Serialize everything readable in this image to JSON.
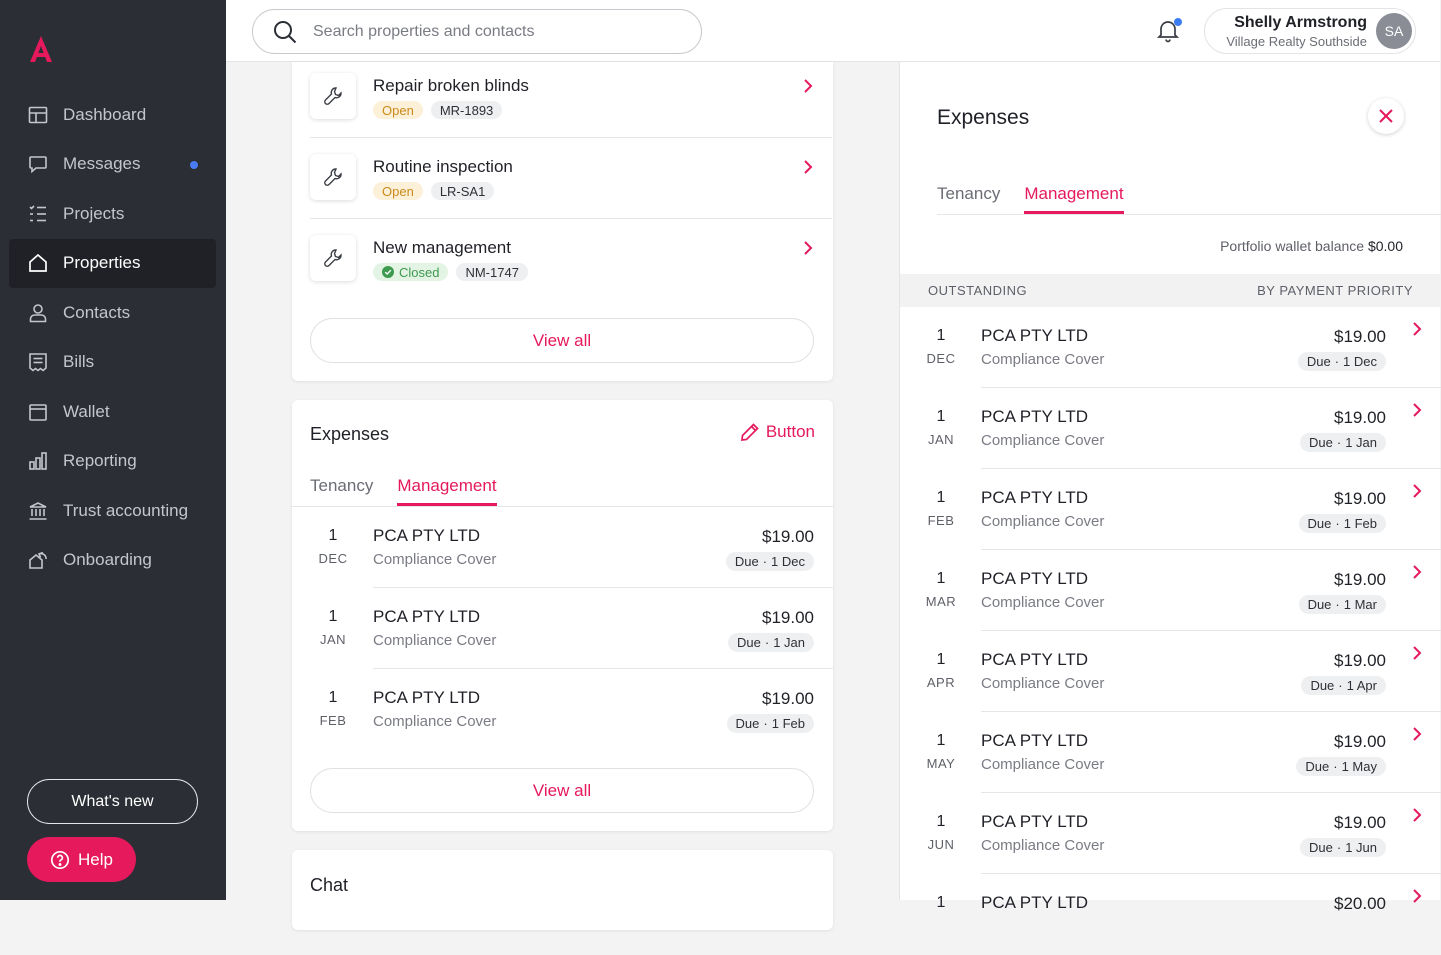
{
  "brand": {
    "accent": "#e5195b",
    "sidebar_bg": "#2b2e35"
  },
  "sidebar": {
    "items": [
      {
        "label": "Dashboard",
        "icon": "dashboard-icon",
        "active": false
      },
      {
        "label": "Messages",
        "icon": "message-icon",
        "active": false,
        "unread_dot": true
      },
      {
        "label": "Projects",
        "icon": "list-icon",
        "active": false
      },
      {
        "label": "Properties",
        "icon": "home-icon",
        "active": true
      },
      {
        "label": "Contacts",
        "icon": "person-icon",
        "active": false
      },
      {
        "label": "Bills",
        "icon": "bill-icon",
        "active": false
      },
      {
        "label": "Wallet",
        "icon": "wallet-icon",
        "active": false
      },
      {
        "label": "Reporting",
        "icon": "bar-chart-icon",
        "active": false
      },
      {
        "label": "Trust accounting",
        "icon": "bank-icon",
        "active": false
      },
      {
        "label": "Onboarding",
        "icon": "onboarding-icon",
        "active": false
      }
    ],
    "whats_new": "What's new",
    "help": "Help"
  },
  "topbar": {
    "search_placeholder": "Search properties and contacts",
    "user_name": "Shelly Armstrong",
    "user_org": "Village Realty Southside",
    "user_initials": "SA"
  },
  "tasks": {
    "items": [
      {
        "title": "Repair broken blinds",
        "status": "Open",
        "ref": "MR-1893"
      },
      {
        "title": "Routine inspection",
        "status": "Open",
        "ref": "LR-SA1"
      },
      {
        "title": "New management",
        "status": "Closed",
        "ref": "NM-1747"
      }
    ],
    "view_all": "View all"
  },
  "expenses_card": {
    "title": "Expenses",
    "button_label": "Button",
    "tabs": [
      "Tenancy",
      "Management"
    ],
    "active_tab": "Management",
    "rows": [
      {
        "day": "1",
        "month": "DEC",
        "vendor": "PCA PTY LTD",
        "desc": "Compliance Cover",
        "amount": "$19.00",
        "due_label": "Due",
        "due_date": "1 Dec"
      },
      {
        "day": "1",
        "month": "JAN",
        "vendor": "PCA PTY LTD",
        "desc": "Compliance Cover",
        "amount": "$19.00",
        "due_label": "Due",
        "due_date": "1 Jan"
      },
      {
        "day": "1",
        "month": "FEB",
        "vendor": "PCA PTY LTD",
        "desc": "Compliance Cover",
        "amount": "$19.00",
        "due_label": "Due",
        "due_date": "1 Feb"
      }
    ],
    "view_all": "View all"
  },
  "chat": {
    "title": "Chat"
  },
  "panel": {
    "title": "Expenses",
    "tabs": [
      "Tenancy",
      "Management"
    ],
    "active_tab": "Management",
    "wallet_label": "Portfolio wallet balance",
    "wallet_value": "$0.00",
    "section_left": "OUTSTANDING",
    "section_right": "BY PAYMENT PRIORITY",
    "rows": [
      {
        "day": "1",
        "month": "DEC",
        "vendor": "PCA PTY LTD",
        "desc": "Compliance Cover",
        "amount": "$19.00",
        "due_label": "Due",
        "due_date": "1 Dec"
      },
      {
        "day": "1",
        "month": "JAN",
        "vendor": "PCA PTY LTD",
        "desc": "Compliance Cover",
        "amount": "$19.00",
        "due_label": "Due",
        "due_date": "1 Jan"
      },
      {
        "day": "1",
        "month": "FEB",
        "vendor": "PCA PTY LTD",
        "desc": "Compliance Cover",
        "amount": "$19.00",
        "due_label": "Due",
        "due_date": "1 Feb"
      },
      {
        "day": "1",
        "month": "MAR",
        "vendor": "PCA PTY LTD",
        "desc": "Compliance Cover",
        "amount": "$19.00",
        "due_label": "Due",
        "due_date": "1 Mar"
      },
      {
        "day": "1",
        "month": "APR",
        "vendor": "PCA PTY LTD",
        "desc": "Compliance Cover",
        "amount": "$19.00",
        "due_label": "Due",
        "due_date": "1 Apr"
      },
      {
        "day": "1",
        "month": "MAY",
        "vendor": "PCA PTY LTD",
        "desc": "Compliance Cover",
        "amount": "$19.00",
        "due_label": "Due",
        "due_date": "1 May"
      },
      {
        "day": "1",
        "month": "JUN",
        "vendor": "PCA PTY LTD",
        "desc": "Compliance Cover",
        "amount": "$19.00",
        "due_label": "Due",
        "due_date": "1 Jun"
      },
      {
        "day": "1",
        "month": "",
        "vendor": "PCA PTY LTD",
        "desc": "",
        "amount": "$20.00",
        "due_label": "",
        "due_date": ""
      }
    ]
  }
}
